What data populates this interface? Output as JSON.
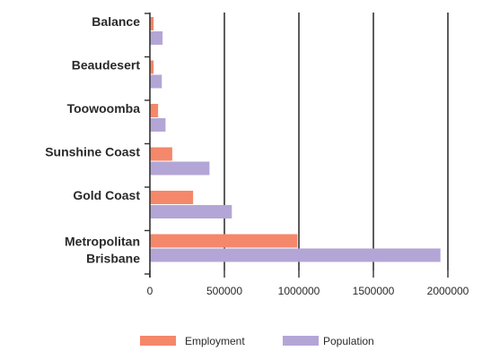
{
  "chart_data": {
    "type": "bar",
    "orientation": "horizontal",
    "categories": [
      "Balance",
      "Beaudesert",
      "Toowoomba",
      "Sunshine Coast",
      "Gold Coast",
      "Metropolitan Brisbane"
    ],
    "series": [
      {
        "name": "Employment",
        "color": "#f5876a",
        "values": [
          25000,
          25000,
          55000,
          150000,
          290000,
          990000
        ]
      },
      {
        "name": "Population",
        "color": "#b3a6d6",
        "values": [
          85000,
          80000,
          105000,
          400000,
          550000,
          1950000
        ]
      }
    ],
    "xlim": [
      0,
      2000000
    ],
    "ticks": [
      0,
      500000,
      1000000,
      1500000,
      2000000
    ],
    "tick_labels": [
      "0",
      "500000",
      "1000000",
      "1500000",
      "2000000"
    ],
    "grid": "vertical",
    "legend": "bottom"
  }
}
